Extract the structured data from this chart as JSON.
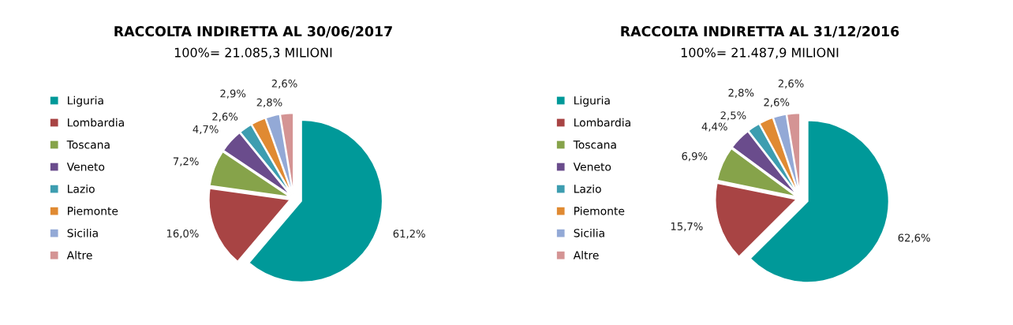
{
  "chart_data": [
    {
      "type": "pie",
      "title": "RACCOLTA INDIRETTA AL 30/06/2017",
      "subtitle": "100%= 21.085,3 MILIONI",
      "categories": [
        "Liguria",
        "Lombardia",
        "Toscana",
        "Veneto",
        "Lazio",
        "Piemonte",
        "Sicilia",
        "Altre"
      ],
      "values": [
        61.2,
        16.0,
        7.2,
        4.7,
        2.6,
        2.9,
        2.8,
        2.6
      ],
      "value_labels": [
        "61,2%",
        "16,0%",
        "7,2%",
        "4,7%",
        "2,6%",
        "2,9%",
        "2,8%",
        "2,6%"
      ],
      "colors": [
        "#009999",
        "#a84444",
        "#86a34a",
        "#6a4c8c",
        "#3d9db0",
        "#e08a32",
        "#93a9d6",
        "#d49494"
      ],
      "legend": "left"
    },
    {
      "type": "pie",
      "title": "RACCOLTA INDIRETTA AL 31/12/2016",
      "subtitle": "100%= 21.487,9 MILIONI",
      "categories": [
        "Liguria",
        "Lombardia",
        "Toscana",
        "Veneto",
        "Lazio",
        "Piemonte",
        "Sicilia",
        "Altre"
      ],
      "values": [
        62.6,
        15.7,
        6.9,
        4.4,
        2.5,
        2.8,
        2.6,
        2.6
      ],
      "value_labels": [
        "62,6%",
        "15,7%",
        "6,9%",
        "4,4%",
        "2,5%",
        "2,8%",
        "2,6%",
        "2,6%"
      ],
      "colors": [
        "#009999",
        "#a84444",
        "#86a34a",
        "#6a4c8c",
        "#3d9db0",
        "#e08a32",
        "#93a9d6",
        "#d49494"
      ],
      "legend": "left"
    }
  ]
}
